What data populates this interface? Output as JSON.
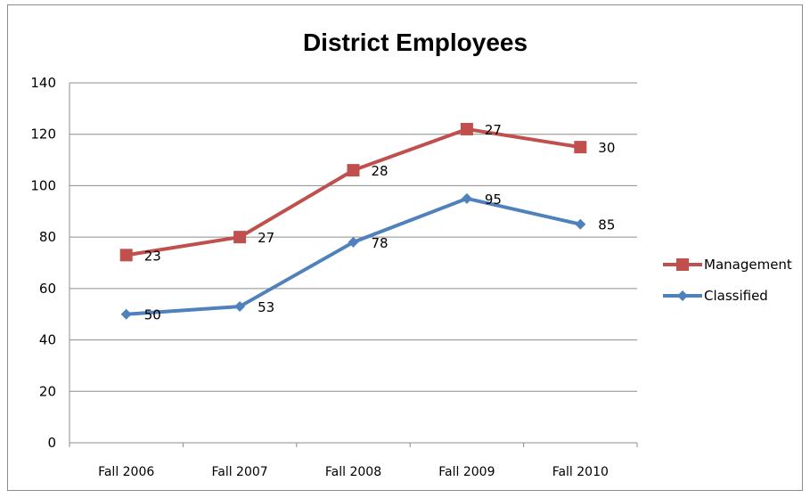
{
  "chart_data": {
    "type": "line",
    "title": "District Employees",
    "xlabel": "",
    "ylabel": "",
    "categories": [
      "Fall 2006",
      "Fall 2007",
      "Fall 2008",
      "Fall 2009",
      "Fall 2010"
    ],
    "ylim": [
      0,
      140
    ],
    "yticks": [
      0,
      20,
      40,
      60,
      80,
      100,
      120,
      140
    ],
    "grid": true,
    "legend_position": "right",
    "series": [
      {
        "name": "Management",
        "color": "#c0504d",
        "marker": "square",
        "values": [
          73,
          80,
          106,
          122,
          115
        ],
        "labels": [
          "23",
          "27",
          "28",
          "27",
          "30"
        ]
      },
      {
        "name": "Classified",
        "color": "#4f81bd",
        "marker": "diamond",
        "values": [
          50,
          53,
          78,
          95,
          85
        ],
        "labels": [
          "50",
          "53",
          "78",
          "95",
          "85"
        ]
      }
    ]
  }
}
